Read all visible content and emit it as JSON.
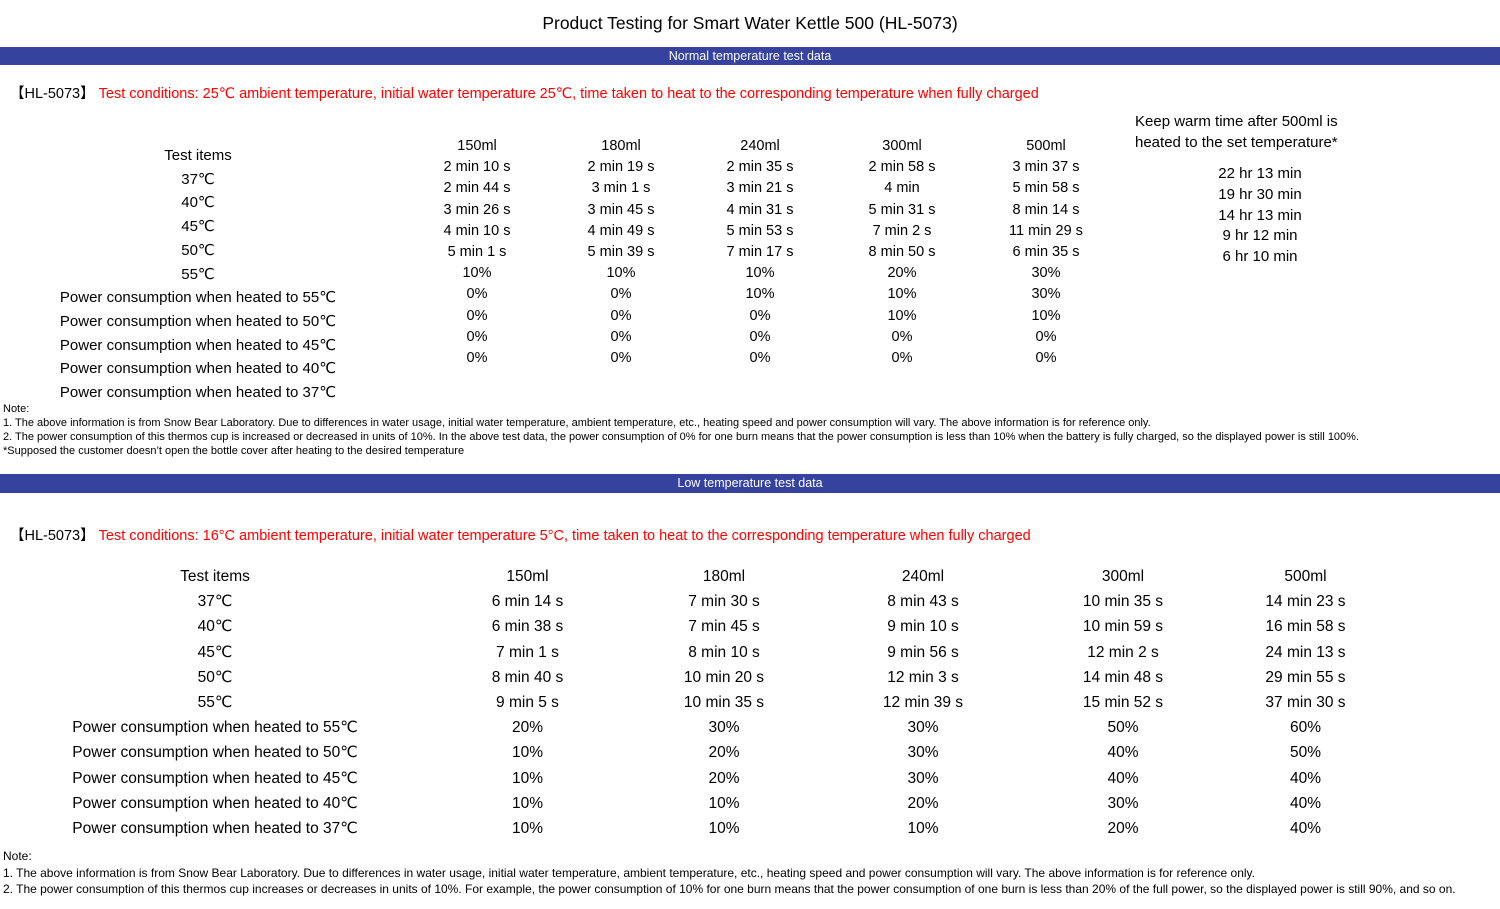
{
  "title": "Product Testing for Smart Water Kettle 500 (HL-5073)",
  "colors": {
    "banner_bg": "#35429e",
    "banner_text": "#ffffff",
    "condition_text": "#ff0000"
  },
  "normal_section": {
    "banner_label": "Normal temperature test data",
    "model_tag": "【HL-5073】",
    "conditions": "Test conditions: 25℃ ambient temperature, initial water temperature 25℃, time taken to heat to the corresponding temperature when fully charged",
    "table": {
      "row_label_header": "Test items",
      "row_labels": [
        "37℃",
        "40℃",
        "45℃",
        "50℃",
        "55℃",
        "Power consumption when heated to 55℃",
        "Power consumption when heated to 50℃",
        "Power consumption when heated to 45℃",
        "Power consumption when heated to 40℃",
        "Power consumption when heated to 37℃"
      ],
      "columns": [
        {
          "header": "150ml",
          "values": [
            "2 min 10 s",
            "2 min 44 s",
            "3 min 26 s",
            "4 min 10 s",
            "5 min 1 s",
            "10%",
            "0%",
            "0%",
            "0%",
            "0%"
          ]
        },
        {
          "header": "180ml",
          "values": [
            "2 min 19 s",
            "3 min 1 s",
            "3 min 45 s",
            "4 min 49 s",
            "5 min 39 s",
            "10%",
            "0%",
            "0%",
            "0%",
            "0%"
          ]
        },
        {
          "header": "240ml",
          "values": [
            "2 min 35 s",
            "3 min 21 s",
            "4 min 31 s",
            "5 min 53 s",
            "7 min 17 s",
            "10%",
            "10%",
            "0%",
            "0%",
            "0%"
          ]
        },
        {
          "header": "300ml",
          "values": [
            "2 min 58 s",
            "4 min",
            "5 min 31 s",
            "7 min 2 s",
            "8 min 50 s",
            "20%",
            "10%",
            "10%",
            "0%",
            "0%"
          ]
        },
        {
          "header": "500ml",
          "values": [
            "3 min 37 s",
            "5 min 58 s",
            "8 min 14 s",
            "11 min 29 s",
            "6 min 35 s",
            "30%",
            "30%",
            "10%",
            "0%",
            "0%"
          ]
        }
      ],
      "keep_warm": {
        "header_line1": "Keep warm time after 500ml is",
        "header_line2": "heated to the set temperature*",
        "values": [
          "22 hr 13 min",
          "19 hr 30 min",
          "14 hr 13 min",
          "9 hr 12 min",
          "6 hr 10 min"
        ]
      }
    },
    "notes": [
      "Note:",
      "1. The above information is from Snow Bear Laboratory. Due to differences in water usage, initial water temperature, ambient temperature, etc., heating speed and power consumption will vary. The above information is for reference only.",
      "2. The power consumption of this thermos cup is increased or decreased in units of 10%. In the above test data, the power consumption of 0% for one burn means that the power consumption is less than 10% when the battery is fully charged, so the displayed power is still 100%.",
      "*Supposed the customer doesn’t open the bottle cover after heating to the desired temperature"
    ]
  },
  "low_section": {
    "banner_label": "Low temperature test data",
    "model_tag": "【HL-5073】",
    "conditions": "Test conditions: 16°C ambient temperature, initial water temperature 5°C, time taken to heat to the corresponding temperature when fully charged",
    "table": {
      "row_label_header": "Test items",
      "row_labels": [
        "37℃",
        "40℃",
        "45℃",
        "50℃",
        "55℃",
        "Power consumption when heated to 55℃",
        "Power consumption when heated to 50℃",
        "Power consumption when heated to 45℃",
        "Power consumption when heated to 40℃",
        "Power consumption when heated to 37℃"
      ],
      "columns": [
        {
          "header": "150ml",
          "values": [
            "6 min 14 s",
            "6 min 38 s",
            "7 min 1 s",
            "8 min 40 s",
            "9 min 5 s",
            "20%",
            "10%",
            "10%",
            "10%",
            "10%"
          ]
        },
        {
          "header": "180ml",
          "values": [
            "7 min 30 s",
            "7 min 45 s",
            "8 min 10 s",
            "10 min 20 s",
            "10 min 35 s",
            "30%",
            "20%",
            "20%",
            "10%",
            "10%"
          ]
        },
        {
          "header": "240ml",
          "values": [
            "8 min 43 s",
            "9 min 10 s",
            "9 min 56 s",
            "12 min 3 s",
            "12 min 39 s",
            "30%",
            "30%",
            "30%",
            "20%",
            "10%"
          ]
        },
        {
          "header": "300ml",
          "values": [
            "10 min 35 s",
            "10 min 59 s",
            "12 min 2 s",
            "14 min 48 s",
            "15 min 52 s",
            "50%",
            "40%",
            "40%",
            "30%",
            "20%"
          ]
        },
        {
          "header": "500ml",
          "values": [
            "14 min 23 s",
            "16 min 58 s",
            "24 min 13 s",
            "29 min 55 s",
            "37 min 30 s",
            "60%",
            "50%",
            "40%",
            "40%",
            "40%"
          ]
        }
      ]
    },
    "notes": [
      "Note:",
      "1. The above information is from Snow Bear Laboratory. Due to differences in water usage, initial water temperature, ambient temperature, etc., heating speed and power consumption will vary. The above information is for reference only.",
      "2. The power consumption of this thermos cup increases or decreases in units of 10%. For example, the power consumption of 10% for one burn means that the power consumption of one burn is less than 20% of the full power, so the displayed power is still 90%, and so on."
    ]
  }
}
